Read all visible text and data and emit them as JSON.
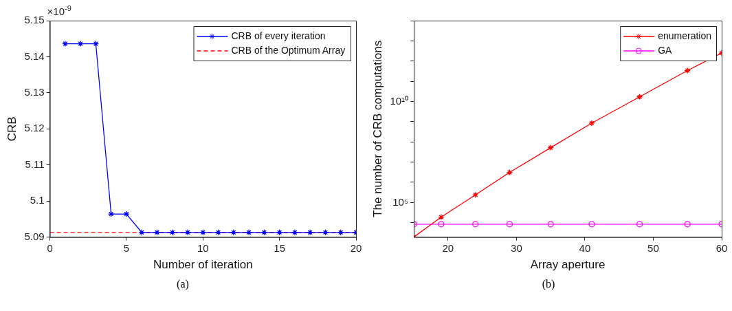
{
  "chart_data": [
    {
      "type": "line",
      "xlabel": "Number of iteration",
      "ylabel": "CRB",
      "annotations": [
        "×10$^{-9}$",
        "(a)"
      ],
      "x": [
        1,
        2,
        3,
        4,
        5,
        6,
        7,
        8,
        9,
        10,
        11,
        12,
        13,
        14,
        15,
        16,
        17,
        18,
        19,
        20
      ],
      "series": [
        {
          "name": "CRB of every iteration",
          "color": "#0000ff",
          "marker": "cross",
          "values": [
            5.1436,
            5.1436,
            5.1436,
            5.0964,
            5.0964,
            5.0913,
            5.0913,
            5.0913,
            5.0913,
            5.0913,
            5.0913,
            5.0913,
            5.0913,
            5.0913,
            5.0913,
            5.0913,
            5.0913,
            5.0913,
            5.0913,
            5.0913
          ]
        }
      ],
      "ref_lines": [
        {
          "axis": "y",
          "value": 5.0913,
          "label": "CRB of the Optimum Array",
          "color": "#ff0000",
          "line_style": "dashed"
        }
      ],
      "xlim": [
        0,
        20
      ],
      "xticks": [
        0,
        5,
        10,
        15,
        20
      ],
      "ylim": [
        5.09,
        5.15
      ],
      "yticks": [
        5.09,
        5.1,
        5.11,
        5.12,
        5.13,
        5.14,
        5.15
      ],
      "grid": false,
      "legend": "top right"
    },
    {
      "type": "line",
      "xlabel": "Array aperture",
      "ylabel": "The number of CRB computations",
      "annotations": [
        "(b)"
      ],
      "log": "y",
      "x": [
        15,
        19,
        24,
        29,
        35,
        41,
        48,
        55,
        60
      ],
      "series": [
        {
          "name": "enumeration",
          "color": "#ff0000",
          "marker": "cross",
          "values": [
            1950,
            19000,
            240000,
            3100000,
            52000000,
            850000000,
            17000000000,
            340000000000,
            2500000000000
          ]
        },
        {
          "name": "GA",
          "color": "#ff00ff",
          "marker": "circle",
          "values": [
            8500,
            8500,
            8500,
            8500,
            8500,
            8500,
            8500,
            8500,
            8500
          ]
        }
      ],
      "xlim": [
        15,
        60
      ],
      "xticks": [
        20,
        30,
        40,
        50,
        60
      ],
      "ylim": [
        1950,
        100000000000000
      ],
      "yticks": [
        {
          "value": 10000,
          "label": null
        },
        {
          "value": 100000,
          "label": "10⁵"
        },
        {
          "value": 1000000,
          "label": null
        },
        {
          "value": 10000000,
          "label": null
        },
        {
          "value": 100000000,
          "label": null
        },
        {
          "value": 1000000000,
          "label": null
        },
        {
          "value": 10000000000,
          "label": "10¹⁰"
        },
        {
          "value": 100000000000,
          "label": null
        },
        {
          "value": 1000000000000,
          "label": null
        },
        {
          "value": 10000000000000,
          "label": null
        },
        {
          "value": 100000000000000,
          "label": null
        }
      ],
      "grid": false,
      "legend": "top right"
    }
  ]
}
